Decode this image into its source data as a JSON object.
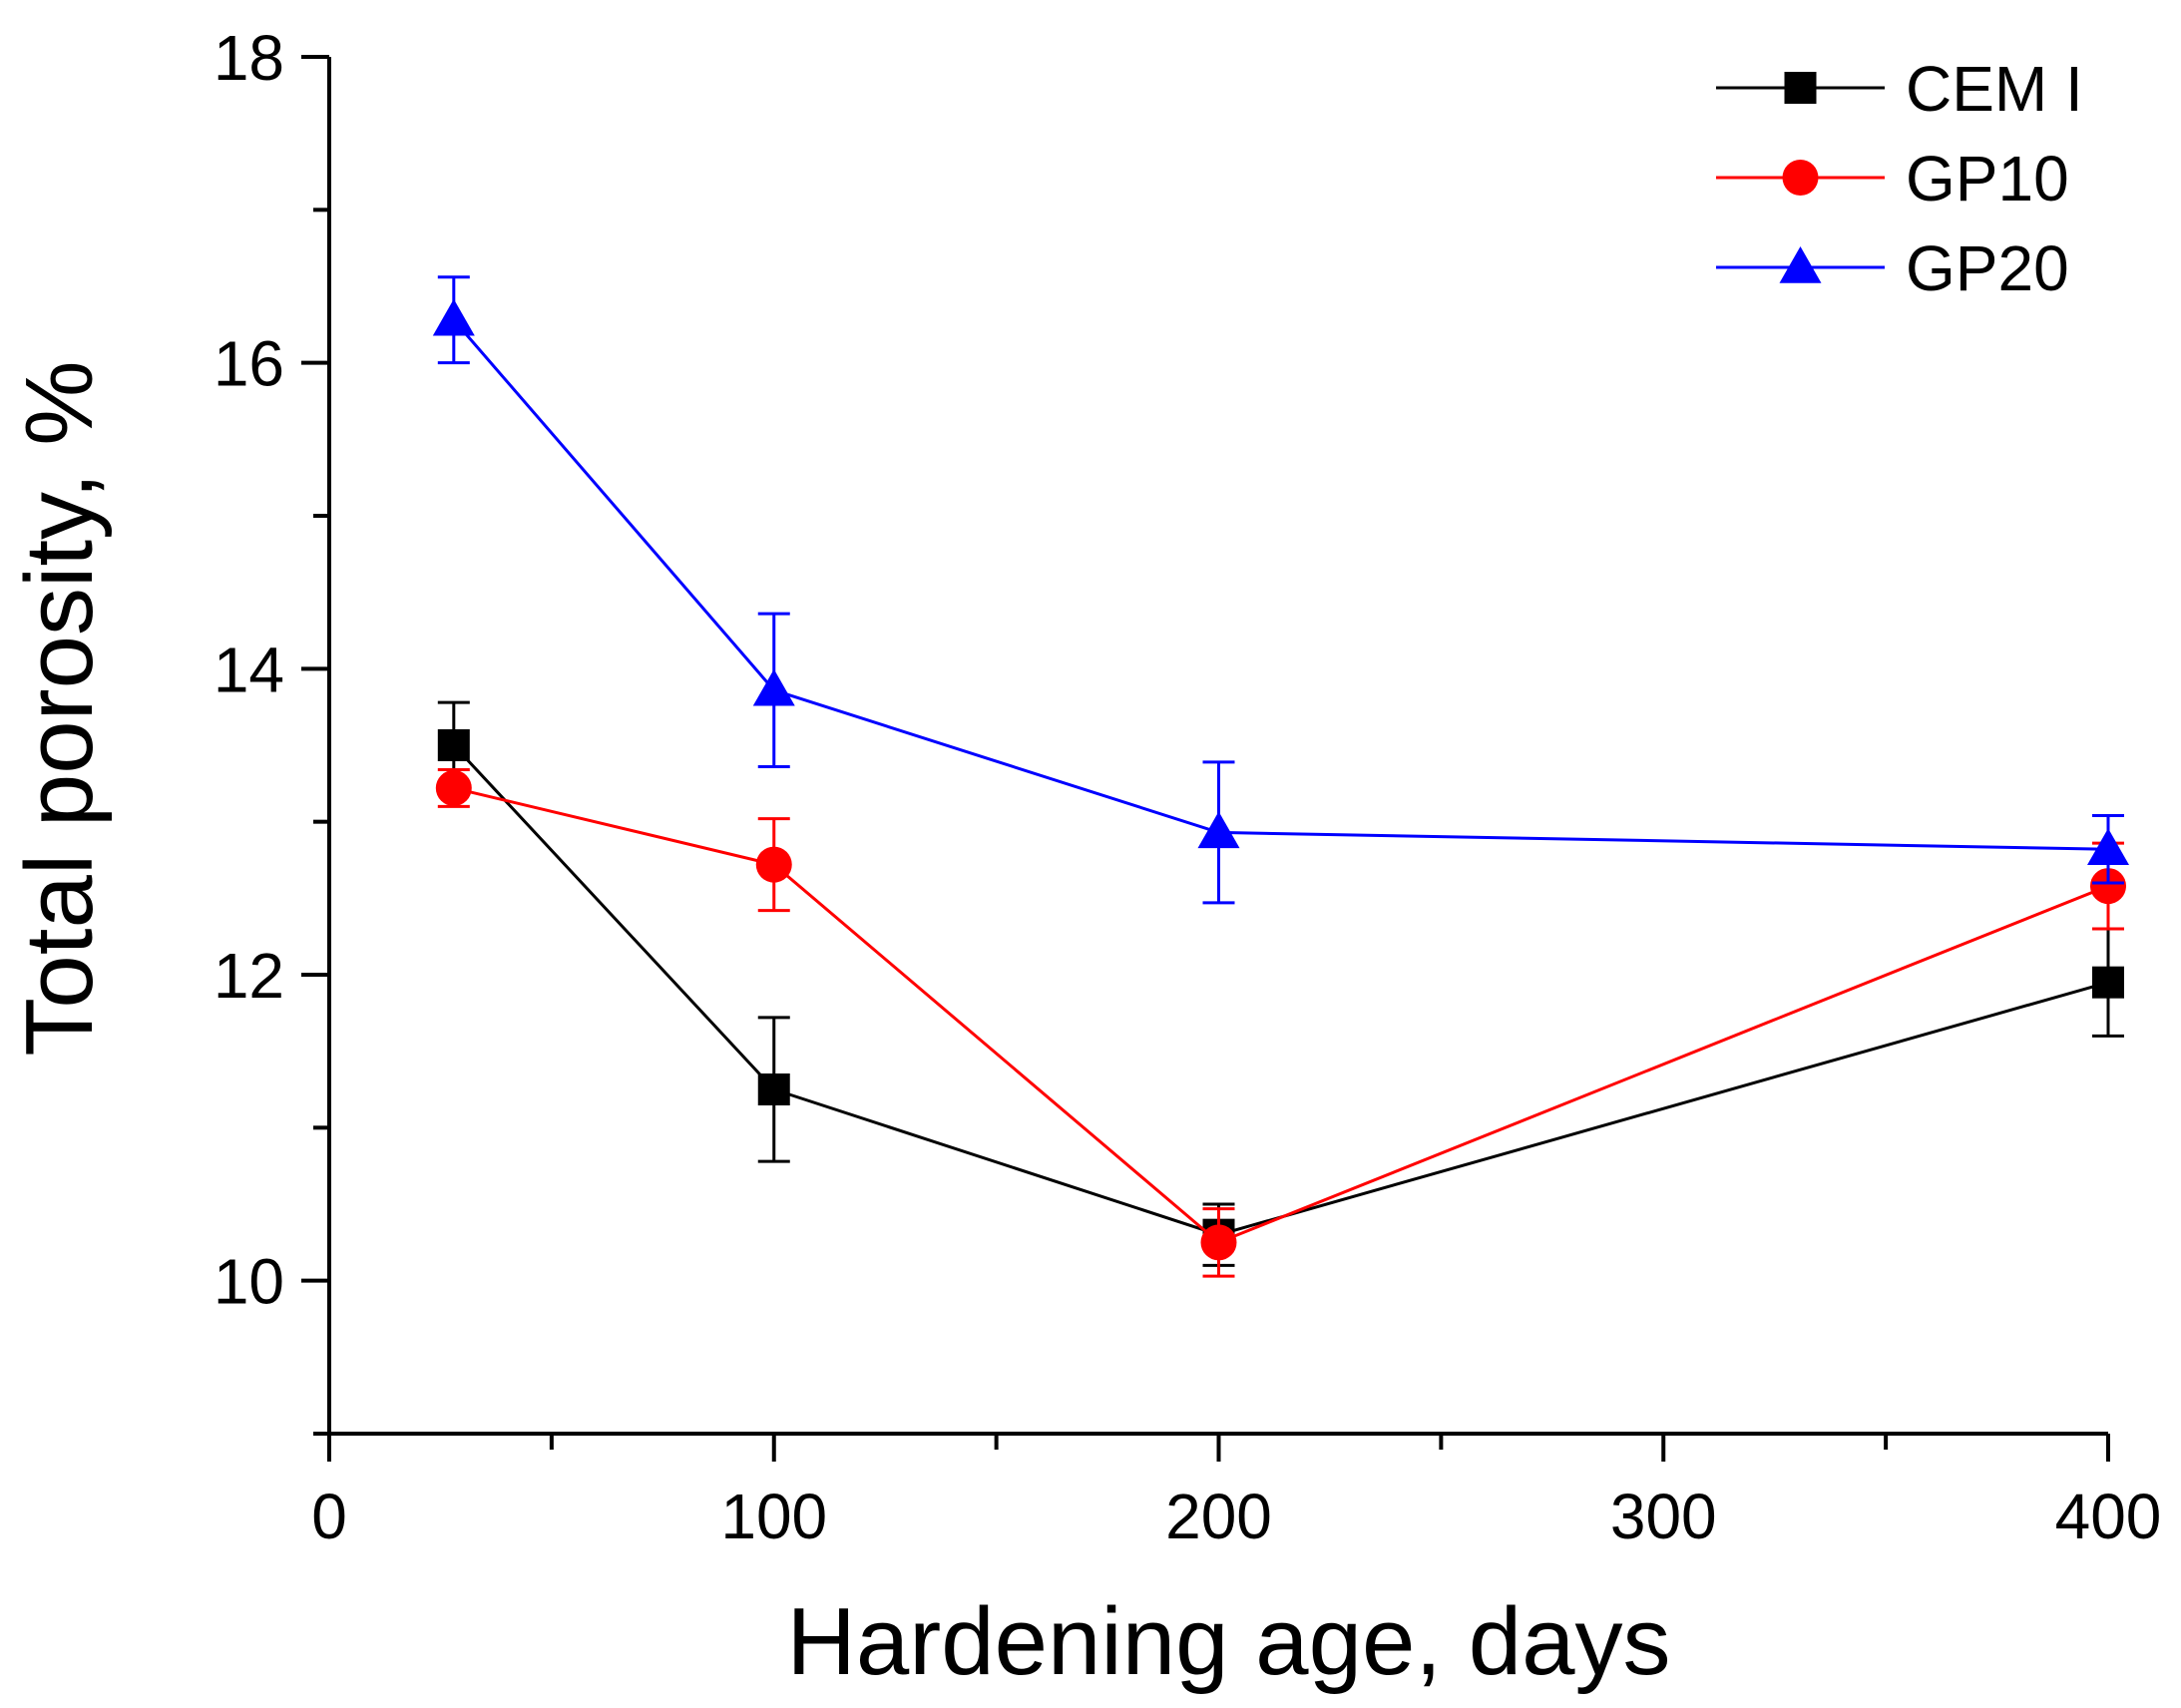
{
  "chart_data": {
    "type": "line",
    "title": "",
    "xlabel": "Hardening age, days",
    "ylabel": "Total porosity, %",
    "xlim": [
      0,
      400
    ],
    "ylim": [
      9,
      18
    ],
    "xticks": [
      "0",
      "100",
      "200",
      "300",
      "400"
    ],
    "yticks": [
      "10",
      "12",
      "14",
      "16",
      "18"
    ],
    "grid": false,
    "legend_position": "top-right",
    "series": [
      {
        "name": "CEM I",
        "color": "#000000",
        "marker": "square",
        "x": [
          28,
          100,
          200,
          400
        ],
        "y": [
          13.5,
          11.25,
          10.3,
          11.95
        ],
        "err": [
          0.28,
          0.47,
          0.2,
          0.35
        ]
      },
      {
        "name": "GP10",
        "color": "#ff0000",
        "marker": "circle",
        "x": [
          28,
          100,
          200,
          400
        ],
        "y": [
          13.22,
          12.72,
          10.25,
          12.58
        ],
        "err": [
          0.12,
          0.3,
          0.22,
          0.28
        ]
      },
      {
        "name": "GP20",
        "color": "#0000ff",
        "marker": "triangle",
        "x": [
          28,
          100,
          200,
          400
        ],
        "y": [
          16.28,
          13.86,
          12.93,
          12.82
        ],
        "err": [
          0.28,
          0.5,
          0.46,
          0.22
        ]
      }
    ]
  }
}
